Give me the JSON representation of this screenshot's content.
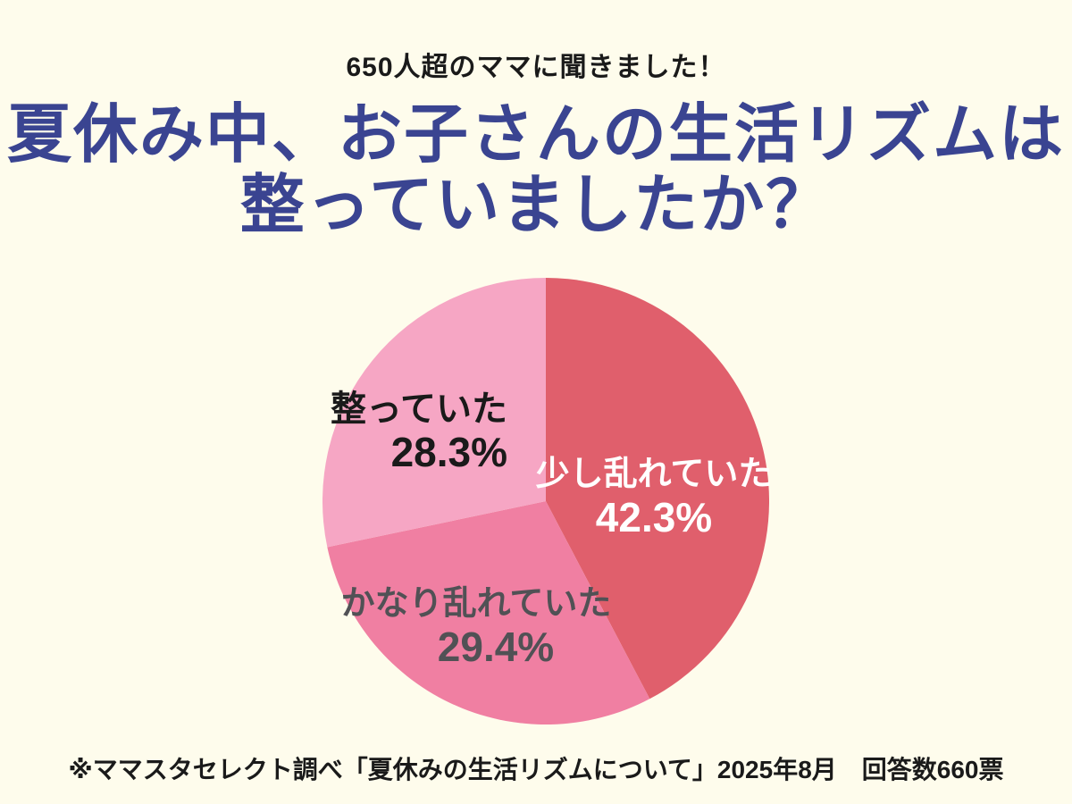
{
  "header": {
    "lead": "650人超のママに聞きました！",
    "title_line1": "夏休み中、お子さんの生活リズムは",
    "title_line2": "整っていましたか？"
  },
  "footer": {
    "note": "※ママスタセレクト調べ「夏休みの生活リズムについて」2025年8月　回答数660票"
  },
  "colors": {
    "background": "#FEFCEC",
    "title": "#3A4491",
    "text": "#1A1A1A"
  },
  "chart_data": {
    "type": "pie",
    "title": "夏休み中、お子さんの生活リズムは整っていましたか？",
    "unit": "%",
    "start_angle_deg": -90,
    "direction": "clockwise",
    "categories": [
      "少し乱れていた",
      "かなり乱れていた",
      "整っていた"
    ],
    "values": [
      42.3,
      29.4,
      28.3
    ],
    "total_responses": "660",
    "slices": [
      {
        "label": "少し乱れていた",
        "value": 42.3,
        "pct_label": "42.3%",
        "color": "#E05F6C",
        "text_color": "#FFFFFF"
      },
      {
        "label": "かなり乱れていた",
        "value": 29.4,
        "pct_label": "29.4%",
        "color": "#F07FA2",
        "text_color": "#515155"
      },
      {
        "label": "整っていた",
        "value": 28.3,
        "pct_label": "28.3%",
        "color": "#F6A6C4",
        "text_color": "#1A1A1A"
      }
    ]
  }
}
